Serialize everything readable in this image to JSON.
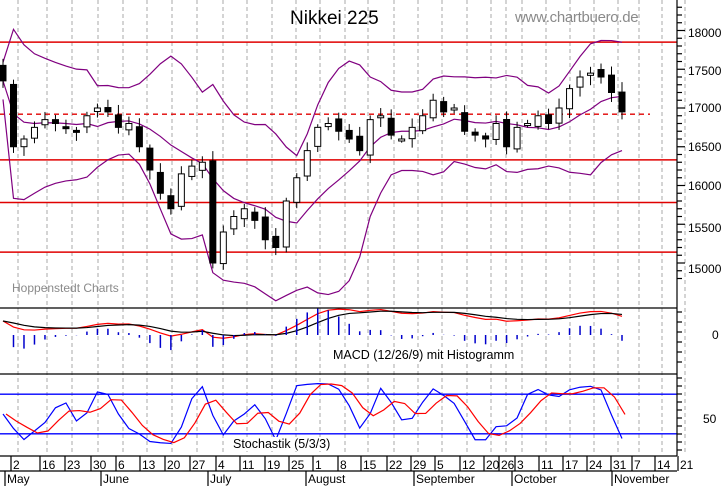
{
  "chart_data": {
    "type": "candlestick",
    "title": "Nikkei 225",
    "watermark": "www.chartbuero.de",
    "source": "Hoppenstedt Charts",
    "price_axis": {
      "ticks": [
        15000,
        15500,
        16000,
        16500,
        17000,
        17500,
        18000
      ],
      "range": [
        14750,
        18400
      ]
    },
    "horizontal_lines": {
      "solid_red": [
        17850,
        16330,
        15780,
        15140
      ],
      "dashed_red": [
        16920
      ]
    },
    "indicators": {
      "bollinger_bands": {
        "color": "#800080"
      },
      "macd": {
        "label": "MACD (12/26/9) mit Histogramm",
        "zero_label": "0",
        "macd_color": "#ff0000",
        "signal_color": "#000000",
        "histogram_color": "#0000cc"
      },
      "stochastic": {
        "label": "Stochastik (5/3/3)",
        "tick_label": "50",
        "k_color": "#0000ff",
        "d_color": "#ff0000",
        "levels": [
          80,
          20
        ]
      }
    },
    "x_axis": {
      "date_ticks": [
        "2",
        "16",
        "23",
        "30",
        "6",
        "13",
        "20",
        "27",
        "4",
        "11",
        "19",
        "25",
        "1",
        "8",
        "15",
        "22",
        "29",
        "5",
        "12",
        "20",
        "26",
        "3",
        "11",
        "17",
        "24",
        "31",
        "7",
        "14",
        "21"
      ],
      "months": [
        "May",
        "June",
        "July",
        "August",
        "September",
        "October",
        "November"
      ]
    },
    "approx_close_series": [
      17350,
      16500,
      16600,
      16750,
      16850,
      16800,
      16750,
      16700,
      16900,
      17000,
      16950,
      16750,
      16800,
      16500,
      16200,
      15900,
      15700,
      16150,
      16250,
      16300,
      15000,
      15400,
      15600,
      15700,
      15550,
      15300,
      15200,
      15800,
      16100,
      16450,
      16750,
      16800,
      16700,
      16600,
      16450,
      16850,
      16900,
      16650,
      16600,
      16750,
      16900,
      17100,
      16950,
      17000,
      16700,
      16650,
      16600,
      16800,
      16500,
      16750,
      16800,
      16900,
      16800,
      17000,
      17250,
      17400,
      17450,
      17400,
      17200,
      16950
    ]
  },
  "labels": {
    "title": "Nikkei 225",
    "watermark": "www.chartbuero.de",
    "source": "Hoppenstedt Charts",
    "macd": "MACD (12/26/9) mit Histogramm",
    "stoch": "Stochastik (5/3/3)",
    "y18000": "18000",
    "y17500": "17500",
    "y17000": "17000",
    "y16500": "16500",
    "y16000": "16000",
    "y15500": "15500",
    "y15000": "15000",
    "macd0": "0",
    "stoch50": "50"
  }
}
